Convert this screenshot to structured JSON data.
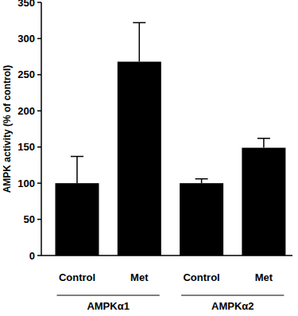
{
  "chart_data": {
    "type": "bar",
    "y_label": "AMPK activity (% of control)",
    "categories": [
      "Control",
      "Met",
      "Control",
      "Met"
    ],
    "groups": [
      "AMPKα1",
      "AMPKα2"
    ],
    "values": [
      100,
      268,
      100,
      149
    ],
    "errors": [
      37,
      54,
      6,
      13
    ],
    "color": "#000000",
    "ylim": [
      0,
      350
    ],
    "yticks": [
      0,
      50,
      100,
      150,
      200,
      250,
      300,
      350
    ],
    "grid": false
  }
}
